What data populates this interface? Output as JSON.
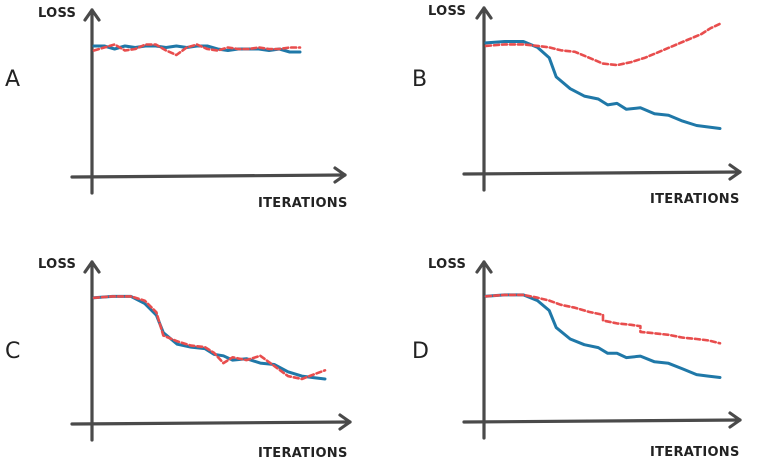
{
  "chart_data": [
    {
      "type": "line",
      "panel_label": "A",
      "ylabel": "LOSS",
      "xlabel": "ITERATIONS",
      "ylim": [
        0,
        1
      ],
      "series": [
        {
          "color": "#1f78a8",
          "style": "solid",
          "x": [
            0,
            0.05,
            0.1,
            0.15,
            0.2,
            0.25,
            0.3,
            0.35,
            0.4,
            0.45,
            0.5,
            0.55,
            0.6,
            0.65,
            0.7,
            0.75,
            0.8,
            0.85,
            0.9,
            0.95,
            1.0
          ],
          "y": [
            0.76,
            0.76,
            0.74,
            0.76,
            0.75,
            0.76,
            0.76,
            0.75,
            0.76,
            0.75,
            0.76,
            0.76,
            0.74,
            0.73,
            0.74,
            0.74,
            0.74,
            0.73,
            0.74,
            0.72,
            0.72
          ]
        },
        {
          "color": "#e84d4d",
          "style": "dashed",
          "x": [
            0,
            0.05,
            0.1,
            0.15,
            0.2,
            0.25,
            0.3,
            0.35,
            0.4,
            0.45,
            0.5,
            0.55,
            0.6,
            0.65,
            0.7,
            0.75,
            0.8,
            0.85,
            0.9,
            0.95,
            1.0
          ],
          "y": [
            0.73,
            0.75,
            0.77,
            0.73,
            0.74,
            0.77,
            0.77,
            0.73,
            0.7,
            0.75,
            0.77,
            0.74,
            0.73,
            0.75,
            0.74,
            0.74,
            0.75,
            0.74,
            0.74,
            0.75,
            0.75
          ]
        }
      ]
    },
    {
      "type": "line",
      "panel_label": "B",
      "ylabel": "LOSS",
      "xlabel": "ITERATIONS",
      "ylim": [
        0,
        1
      ],
      "series": [
        {
          "color": "#1f78a8",
          "style": "solid",
          "x": [
            0,
            0.08,
            0.16,
            0.22,
            0.27,
            0.3,
            0.36,
            0.42,
            0.48,
            0.52,
            0.56,
            0.6,
            0.66,
            0.72,
            0.78,
            0.84,
            0.9,
            0.95,
            1.0
          ],
          "y": [
            0.78,
            0.79,
            0.79,
            0.75,
            0.68,
            0.55,
            0.47,
            0.42,
            0.4,
            0.36,
            0.37,
            0.33,
            0.34,
            0.3,
            0.29,
            0.25,
            0.22,
            0.21,
            0.2
          ]
        },
        {
          "color": "#e84d4d",
          "style": "dashed",
          "x": [
            0,
            0.08,
            0.16,
            0.22,
            0.27,
            0.32,
            0.38,
            0.44,
            0.5,
            0.56,
            0.62,
            0.68,
            0.74,
            0.8,
            0.86,
            0.92,
            0.96,
            1.0
          ],
          "y": [
            0.76,
            0.77,
            0.77,
            0.76,
            0.75,
            0.73,
            0.72,
            0.68,
            0.64,
            0.63,
            0.65,
            0.68,
            0.72,
            0.76,
            0.8,
            0.84,
            0.88,
            0.91
          ]
        }
      ]
    },
    {
      "type": "line",
      "panel_label": "C",
      "ylabel": "LOSS",
      "xlabel": "ITERATIONS",
      "ylim": [
        0,
        1
      ],
      "series": [
        {
          "color": "#1f78a8",
          "style": "solid",
          "x": [
            0,
            0.08,
            0.16,
            0.22,
            0.27,
            0.3,
            0.36,
            0.42,
            0.48,
            0.52,
            0.56,
            0.6,
            0.66,
            0.72,
            0.78,
            0.84,
            0.9,
            0.95,
            1.0
          ],
          "y": [
            0.76,
            0.77,
            0.77,
            0.72,
            0.64,
            0.52,
            0.44,
            0.42,
            0.41,
            0.37,
            0.36,
            0.33,
            0.34,
            0.31,
            0.3,
            0.25,
            0.22,
            0.21,
            0.2
          ]
        },
        {
          "color": "#e84d4d",
          "style": "dashed",
          "x": [
            0,
            0.08,
            0.16,
            0.22,
            0.27,
            0.3,
            0.36,
            0.42,
            0.48,
            0.52,
            0.56,
            0.6,
            0.66,
            0.72,
            0.78,
            0.84,
            0.9,
            0.95,
            1.0
          ],
          "y": [
            0.76,
            0.77,
            0.77,
            0.74,
            0.66,
            0.5,
            0.46,
            0.43,
            0.42,
            0.38,
            0.31,
            0.35,
            0.33,
            0.36,
            0.29,
            0.22,
            0.2,
            0.23,
            0.26
          ]
        }
      ]
    },
    {
      "type": "line",
      "panel_label": "D",
      "ylabel": "LOSS",
      "xlabel": "ITERATIONS",
      "ylim": [
        0,
        1
      ],
      "series": [
        {
          "color": "#1f78a8",
          "style": "solid",
          "x": [
            0,
            0.08,
            0.16,
            0.22,
            0.27,
            0.3,
            0.36,
            0.42,
            0.48,
            0.52,
            0.56,
            0.6,
            0.66,
            0.72,
            0.78,
            0.84,
            0.9,
            0.95,
            1.0
          ],
          "y": [
            0.77,
            0.78,
            0.78,
            0.74,
            0.67,
            0.55,
            0.47,
            0.43,
            0.41,
            0.37,
            0.37,
            0.34,
            0.35,
            0.31,
            0.3,
            0.26,
            0.22,
            0.21,
            0.2
          ]
        },
        {
          "color": "#e84d4d",
          "style": "dashed",
          "x": [
            0,
            0.08,
            0.16,
            0.22,
            0.27,
            0.32,
            0.38,
            0.44,
            0.5,
            0.5,
            0.56,
            0.62,
            0.66,
            0.66,
            0.72,
            0.78,
            0.84,
            0.9,
            0.95,
            1.0
          ],
          "y": [
            0.77,
            0.78,
            0.78,
            0.76,
            0.74,
            0.71,
            0.69,
            0.66,
            0.64,
            0.6,
            0.58,
            0.57,
            0.56,
            0.52,
            0.51,
            0.5,
            0.48,
            0.47,
            0.46,
            0.44
          ]
        }
      ]
    }
  ]
}
